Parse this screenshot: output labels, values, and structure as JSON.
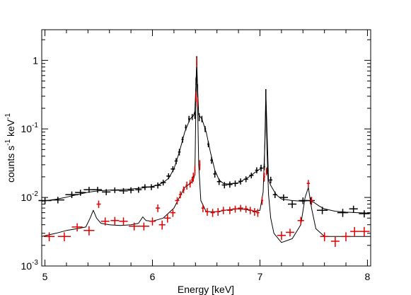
{
  "chart_data": {
    "type": "scatter",
    "xlabel": "Energy [keV]",
    "ylabel": {
      "base": "counts s",
      "sup1": "-1",
      "mid": " keV",
      "sup2": "-1"
    },
    "xlim": [
      4.97,
      8.03
    ],
    "ylim": [
      0.001,
      2.8
    ],
    "y_scale": "log",
    "grid": false,
    "x_ticks": [
      {
        "value": 5,
        "label": "5"
      },
      {
        "value": 6,
        "label": "6"
      },
      {
        "value": 7,
        "label": "7"
      },
      {
        "value": 8,
        "label": "8"
      }
    ],
    "y_ticks": [
      {
        "value": 0.001,
        "base": "10",
        "exp": "-3"
      },
      {
        "value": 0.01,
        "base": "10",
        "exp": "-2"
      },
      {
        "value": 0.1,
        "base": "10",
        "exp": "-1"
      },
      {
        "value": 1,
        "base": "1",
        "exp": ""
      }
    ],
    "series": [
      {
        "color": "#000000",
        "points": [
          [
            5.0,
            0.009,
            0.06,
            0.001
          ],
          [
            5.12,
            0.0092,
            0.06,
            0.001
          ],
          [
            5.25,
            0.011,
            0.06,
            0.0012
          ],
          [
            5.33,
            0.0118,
            0.05,
            0.0012
          ],
          [
            5.41,
            0.013,
            0.05,
            0.0013
          ],
          [
            5.49,
            0.013,
            0.04,
            0.0013
          ],
          [
            5.57,
            0.012,
            0.04,
            0.0012
          ],
          [
            5.65,
            0.0128,
            0.04,
            0.0012
          ],
          [
            5.73,
            0.0125,
            0.04,
            0.0012
          ],
          [
            5.8,
            0.0128,
            0.03,
            0.0013
          ],
          [
            5.87,
            0.013,
            0.03,
            0.0013
          ],
          [
            5.93,
            0.0142,
            0.03,
            0.0014
          ],
          [
            5.99,
            0.0142,
            0.03,
            0.0014
          ],
          [
            6.05,
            0.015,
            0.03,
            0.0015
          ],
          [
            6.1,
            0.0165,
            0.025,
            0.0016
          ],
          [
            6.15,
            0.0205,
            0.02,
            0.002
          ],
          [
            6.19,
            0.026,
            0.02,
            0.0025
          ],
          [
            6.22,
            0.034,
            0.015,
            0.0035
          ],
          [
            6.25,
            0.046,
            0.012,
            0.005
          ],
          [
            6.28,
            0.07,
            0.01,
            0.007
          ],
          [
            6.31,
            0.105,
            0.008,
            0.01
          ],
          [
            6.34,
            0.14,
            0.008,
            0.015
          ],
          [
            6.37,
            0.15,
            0.006,
            0.015
          ],
          [
            6.395,
            0.16,
            0.005,
            0.02
          ],
          [
            6.405,
            0.5,
            0.004,
            0.06
          ],
          [
            6.412,
            1.0,
            0.003,
            0.15
          ],
          [
            6.42,
            0.4,
            0.004,
            0.05
          ],
          [
            6.435,
            0.15,
            0.005,
            0.02
          ],
          [
            6.46,
            0.14,
            0.006,
            0.015
          ],
          [
            6.49,
            0.1,
            0.008,
            0.01
          ],
          [
            6.52,
            0.06,
            0.01,
            0.006
          ],
          [
            6.55,
            0.035,
            0.012,
            0.004
          ],
          [
            6.58,
            0.022,
            0.015,
            0.0025
          ],
          [
            6.62,
            0.017,
            0.02,
            0.0018
          ],
          [
            6.67,
            0.0152,
            0.025,
            0.0016
          ],
          [
            6.72,
            0.0155,
            0.025,
            0.0016
          ],
          [
            6.77,
            0.016,
            0.025,
            0.0016
          ],
          [
            6.82,
            0.0172,
            0.02,
            0.0017
          ],
          [
            6.87,
            0.0185,
            0.02,
            0.0018
          ],
          [
            6.92,
            0.021,
            0.02,
            0.002
          ],
          [
            6.97,
            0.025,
            0.015,
            0.0025
          ],
          [
            7.01,
            0.027,
            0.012,
            0.003
          ],
          [
            7.04,
            0.028,
            0.008,
            0.003
          ],
          [
            7.055,
            0.33,
            0.004,
            0.05
          ],
          [
            7.07,
            0.025,
            0.01,
            0.003
          ],
          [
            7.1,
            0.018,
            0.015,
            0.002
          ],
          [
            7.14,
            0.011,
            0.02,
            0.0012
          ],
          [
            7.22,
            0.01,
            0.04,
            0.0011
          ],
          [
            7.3,
            0.008,
            0.04,
            0.001
          ],
          [
            7.4,
            0.009,
            0.04,
            0.001
          ],
          [
            7.47,
            0.009,
            0.04,
            0.001
          ],
          [
            7.58,
            0.0065,
            0.05,
            0.0008
          ],
          [
            7.77,
            0.006,
            0.05,
            0.0008
          ],
          [
            7.87,
            0.0068,
            0.04,
            0.0008
          ],
          [
            7.97,
            0.0058,
            0.05,
            0.0007
          ]
        ]
      },
      {
        "color": "#e00000",
        "points": [
          [
            5.04,
            0.0027,
            0.05,
            0.0004
          ],
          [
            5.18,
            0.0027,
            0.06,
            0.0004
          ],
          [
            5.3,
            0.0037,
            0.05,
            0.0005
          ],
          [
            5.41,
            0.0033,
            0.05,
            0.0005
          ],
          [
            5.5,
            0.008,
            0.02,
            0.001
          ],
          [
            5.56,
            0.0045,
            0.04,
            0.0006
          ],
          [
            5.65,
            0.0046,
            0.04,
            0.0006
          ],
          [
            5.73,
            0.0045,
            0.04,
            0.0006
          ],
          [
            5.83,
            0.0038,
            0.05,
            0.0005
          ],
          [
            5.92,
            0.0038,
            0.05,
            0.0005
          ],
          [
            6.0,
            0.0045,
            0.03,
            0.0006
          ],
          [
            6.05,
            0.007,
            0.02,
            0.0009
          ],
          [
            6.09,
            0.004,
            0.03,
            0.0006
          ],
          [
            6.14,
            0.005,
            0.03,
            0.0007
          ],
          [
            6.19,
            0.006,
            0.025,
            0.0008
          ],
          [
            6.23,
            0.009,
            0.02,
            0.0011
          ],
          [
            6.26,
            0.011,
            0.015,
            0.0013
          ],
          [
            6.29,
            0.013,
            0.012,
            0.0015
          ],
          [
            6.32,
            0.015,
            0.012,
            0.002
          ],
          [
            6.35,
            0.016,
            0.01,
            0.002
          ],
          [
            6.37,
            0.018,
            0.01,
            0.002
          ],
          [
            6.38,
            0.02,
            0.008,
            0.003
          ],
          [
            6.395,
            0.025,
            0.006,
            0.004
          ],
          [
            6.405,
            0.3,
            0.004,
            0.05
          ],
          [
            6.412,
            0.95,
            0.003,
            0.15
          ],
          [
            6.42,
            0.25,
            0.004,
            0.04
          ],
          [
            6.44,
            0.03,
            0.006,
            0.005
          ],
          [
            6.47,
            0.007,
            0.015,
            0.0009
          ],
          [
            6.51,
            0.0062,
            0.02,
            0.0008
          ],
          [
            6.56,
            0.006,
            0.02,
            0.0008
          ],
          [
            6.61,
            0.0062,
            0.02,
            0.0008
          ],
          [
            6.66,
            0.0065,
            0.02,
            0.0008
          ],
          [
            6.72,
            0.0065,
            0.025,
            0.0008
          ],
          [
            6.77,
            0.0068,
            0.025,
            0.0008
          ],
          [
            6.82,
            0.007,
            0.025,
            0.0008
          ],
          [
            6.87,
            0.0068,
            0.02,
            0.0008
          ],
          [
            6.91,
            0.0065,
            0.02,
            0.0008
          ],
          [
            6.95,
            0.0062,
            0.02,
            0.0008
          ],
          [
            6.98,
            0.006,
            0.015,
            0.0008
          ],
          [
            7.02,
            0.009,
            0.01,
            0.0012
          ],
          [
            7.04,
            0.02,
            0.008,
            0.003
          ],
          [
            7.06,
            0.024,
            0.006,
            0.003
          ],
          [
            7.2,
            0.0028,
            0.04,
            0.0004
          ],
          [
            7.28,
            0.0031,
            0.04,
            0.0004
          ],
          [
            7.38,
            0.0046,
            0.03,
            0.0006
          ],
          [
            7.45,
            0.016,
            0.015,
            0.002
          ],
          [
            7.48,
            0.009,
            0.015,
            0.0012
          ],
          [
            7.6,
            0.0027,
            0.04,
            0.0004
          ],
          [
            7.7,
            0.0023,
            0.04,
            0.0004
          ],
          [
            7.8,
            0.0027,
            0.04,
            0.0004
          ],
          [
            7.88,
            0.0032,
            0.04,
            0.0005
          ],
          [
            7.97,
            0.0032,
            0.05,
            0.0005
          ]
        ]
      }
    ],
    "models": [
      {
        "color": "#000000",
        "points": [
          [
            4.97,
            0.0088
          ],
          [
            5.1,
            0.0094
          ],
          [
            5.2,
            0.0101
          ],
          [
            5.3,
            0.011
          ],
          [
            5.4,
            0.0119
          ],
          [
            5.5,
            0.0125
          ],
          [
            5.6,
            0.0128
          ],
          [
            5.7,
            0.013
          ],
          [
            5.8,
            0.0133
          ],
          [
            5.9,
            0.0137
          ],
          [
            6.0,
            0.0145
          ],
          [
            6.05,
            0.0152
          ],
          [
            6.1,
            0.0165
          ],
          [
            6.15,
            0.019
          ],
          [
            6.2,
            0.026
          ],
          [
            6.25,
            0.046
          ],
          [
            6.3,
            0.09
          ],
          [
            6.35,
            0.14
          ],
          [
            6.38,
            0.155
          ],
          [
            6.395,
            0.18
          ],
          [
            6.405,
            0.5
          ],
          [
            6.412,
            0.95
          ],
          [
            6.42,
            0.4
          ],
          [
            6.43,
            0.16
          ],
          [
            6.46,
            0.14
          ],
          [
            6.5,
            0.09
          ],
          [
            6.54,
            0.045
          ],
          [
            6.58,
            0.025
          ],
          [
            6.62,
            0.018
          ],
          [
            6.66,
            0.016
          ],
          [
            6.7,
            0.0157
          ],
          [
            6.8,
            0.0163
          ],
          [
            6.9,
            0.02
          ],
          [
            6.95,
            0.023
          ],
          [
            7.0,
            0.026
          ],
          [
            7.04,
            0.027
          ],
          [
            7.05,
            0.15
          ],
          [
            7.055,
            0.35
          ],
          [
            7.065,
            0.1
          ],
          [
            7.08,
            0.018
          ],
          [
            7.1,
            0.015
          ],
          [
            7.15,
            0.011
          ],
          [
            7.2,
            0.0095
          ],
          [
            7.3,
            0.009
          ],
          [
            7.4,
            0.0088
          ],
          [
            7.45,
            0.009
          ],
          [
            7.5,
            0.0085
          ],
          [
            7.55,
            0.0075
          ],
          [
            7.6,
            0.0068
          ],
          [
            7.7,
            0.0063
          ],
          [
            7.8,
            0.0061
          ],
          [
            7.9,
            0.006
          ],
          [
            8.03,
            0.0059
          ]
        ]
      },
      {
        "color": "#000000",
        "points": [
          [
            4.97,
            0.0027
          ],
          [
            5.1,
            0.003
          ],
          [
            5.2,
            0.0033
          ],
          [
            5.3,
            0.0035
          ],
          [
            5.38,
            0.0037
          ],
          [
            5.42,
            0.005
          ],
          [
            5.45,
            0.0065
          ],
          [
            5.48,
            0.005
          ],
          [
            5.52,
            0.0042
          ],
          [
            5.6,
            0.004
          ],
          [
            5.7,
            0.0039
          ],
          [
            5.8,
            0.004
          ],
          [
            5.87,
            0.0042
          ],
          [
            5.91,
            0.0052
          ],
          [
            5.94,
            0.0046
          ],
          [
            6.0,
            0.0045
          ],
          [
            6.1,
            0.005
          ],
          [
            6.2,
            0.007
          ],
          [
            6.25,
            0.01
          ],
          [
            6.3,
            0.014
          ],
          [
            6.35,
            0.016
          ],
          [
            6.38,
            0.018
          ],
          [
            6.395,
            0.022
          ],
          [
            6.405,
            0.3
          ],
          [
            6.412,
            0.9
          ],
          [
            6.42,
            0.25
          ],
          [
            6.43,
            0.03
          ],
          [
            6.45,
            0.009
          ],
          [
            6.5,
            0.0062
          ],
          [
            6.6,
            0.0062
          ],
          [
            6.7,
            0.0066
          ],
          [
            6.8,
            0.0068
          ],
          [
            6.9,
            0.0066
          ],
          [
            6.95,
            0.0063
          ],
          [
            7.0,
            0.0065
          ],
          [
            7.03,
            0.012
          ],
          [
            7.05,
            0.1
          ],
          [
            7.055,
            0.33
          ],
          [
            7.065,
            0.05
          ],
          [
            7.08,
            0.011
          ],
          [
            7.1,
            0.005
          ],
          [
            7.13,
            0.003
          ],
          [
            7.2,
            0.0022
          ],
          [
            7.3,
            0.0025
          ],
          [
            7.38,
            0.004
          ],
          [
            7.42,
            0.01
          ],
          [
            7.45,
            0.014
          ],
          [
            7.48,
            0.007
          ],
          [
            7.52,
            0.0035
          ],
          [
            7.6,
            0.0027
          ],
          [
            7.8,
            0.0027
          ],
          [
            8.03,
            0.0027
          ]
        ]
      }
    ]
  }
}
